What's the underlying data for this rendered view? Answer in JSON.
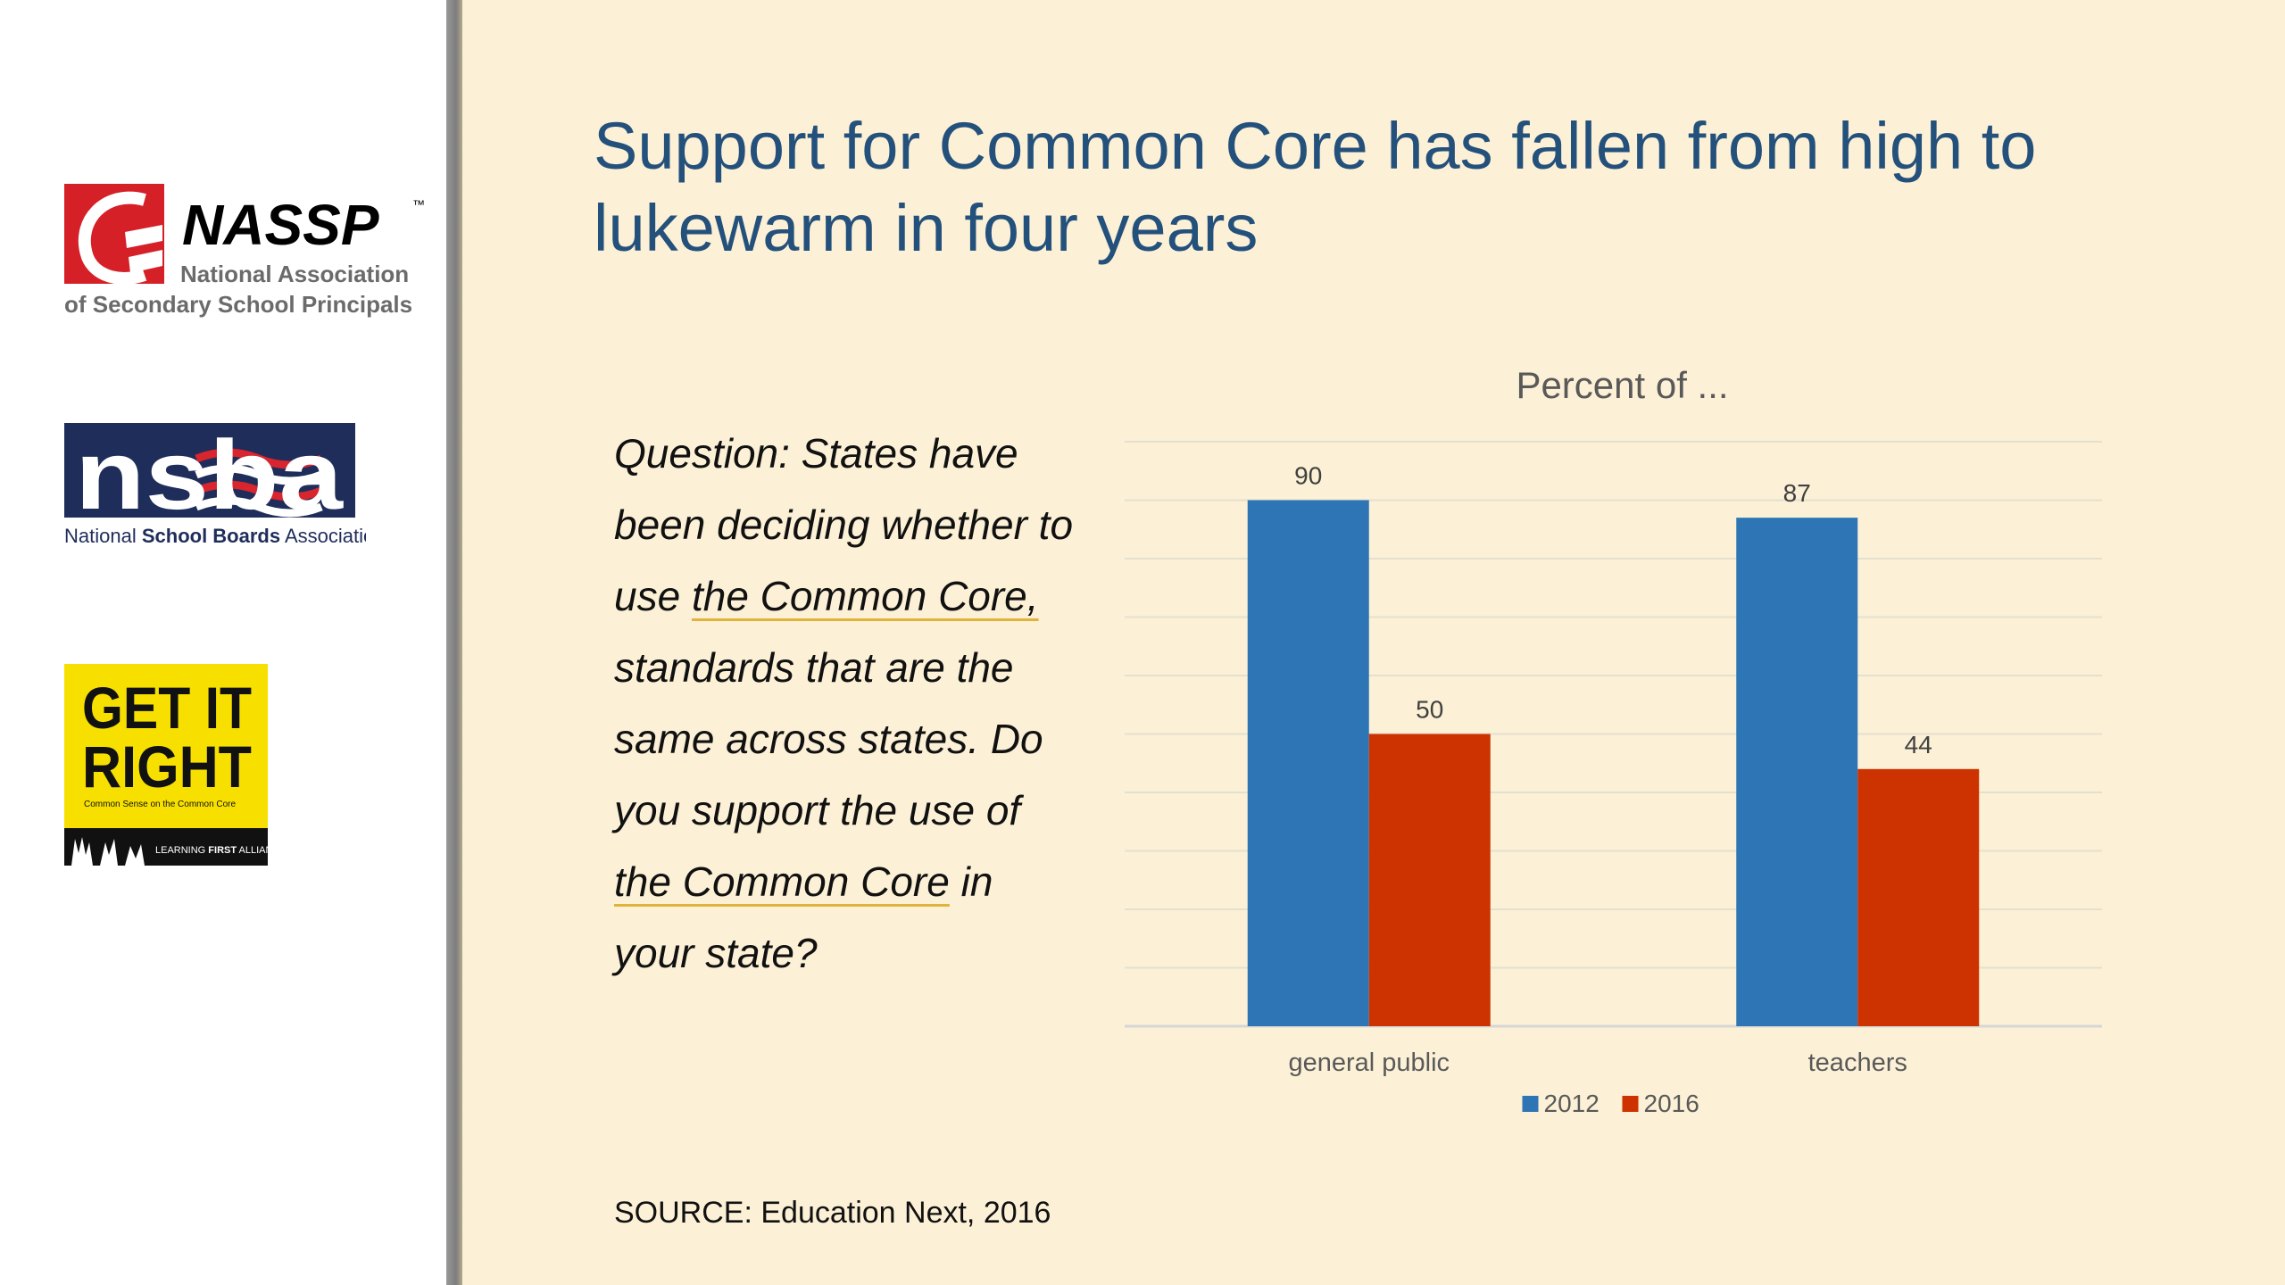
{
  "slide": {
    "title": "Support for Common Core has fallen from high to lukewarm in four years",
    "question_parts": [
      "Question: States have been deciding whether to use ",
      "the Common Core,",
      " standards that are the same across states. Do you support the use of ",
      "the Common Core",
      " in your state?"
    ],
    "source": "SOURCE: Education Next, 2016"
  },
  "logos": {
    "nassp": {
      "name": "NASSP",
      "tm": "™",
      "line1": "National Association",
      "line2": "of Secondary School Principals"
    },
    "nsba": {
      "mark": "nsba",
      "pre": "National ",
      "bold": "School Boards",
      "post": " Association"
    },
    "getitright": {
      "line1": "GET IT",
      "line2": "RIGHT",
      "tagline": "Common Sense on the Common Core",
      "footer_pre": "LEARNING ",
      "footer_bold": "FIRST",
      "footer_post": " ALLIANCE"
    }
  },
  "chart_data": {
    "type": "bar",
    "title": "Percent of ...",
    "categories": [
      "general public",
      "teachers"
    ],
    "series": [
      {
        "name": "2012",
        "values": [
          90,
          87
        ],
        "color": "#2e75b6"
      },
      {
        "name": "2016",
        "values": [
          50,
          44
        ],
        "color": "#cc3300"
      }
    ],
    "ylim": [
      0,
      100
    ],
    "grid": true,
    "legend": "bottom",
    "data_labels": true
  }
}
